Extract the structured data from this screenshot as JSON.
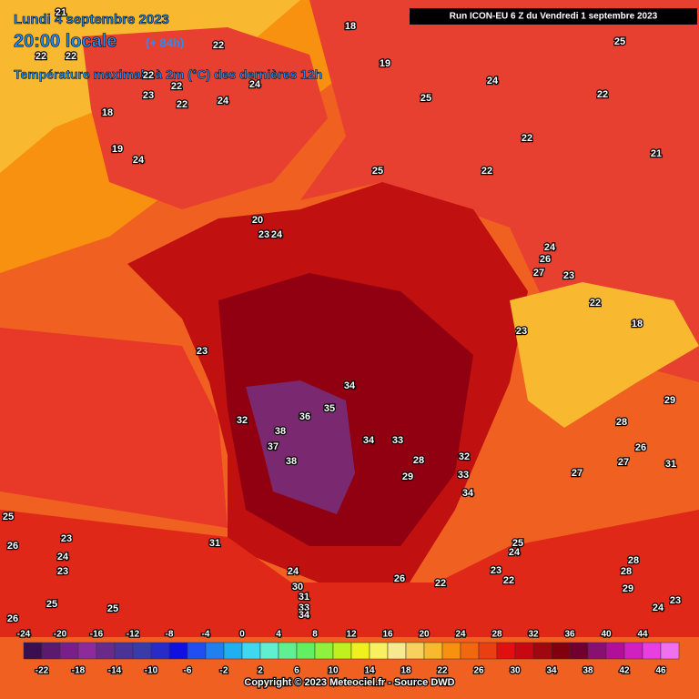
{
  "header": {
    "date": "Lundi 4 septembre 2023",
    "time": "20:00 locale",
    "lead": "(+ 84h)",
    "variable": "Température maximale à 2m (°C) des dernières 12h",
    "run": "Run ICON-EU 6 Z du Vendredi 1 septembre 2023"
  },
  "map_labels": [
    21,
    22,
    22,
    22,
    22,
    22,
    18,
    19,
    25,
    24,
    22,
    25,
    23,
    22,
    24,
    24,
    18,
    22,
    19,
    24,
    25,
    22,
    21,
    20,
    23,
    24,
    24,
    26,
    27,
    23,
    22,
    23,
    18,
    23,
    34,
    35,
    36,
    32,
    38,
    34,
    33,
    37,
    38,
    28,
    32,
    29,
    33,
    34,
    27,
    31,
    29,
    28,
    26,
    27,
    25,
    26,
    31,
    24,
    23,
    23,
    25,
    24,
    23,
    22,
    22,
    26,
    24,
    30,
    31,
    33,
    34,
    25,
    25,
    26,
    24,
    23,
    29,
    28,
    28
  ],
  "colorbar": {
    "ticks_top": [
      -24,
      -20,
      -16,
      -12,
      -8,
      -4,
      0,
      4,
      8,
      12,
      16,
      20,
      24,
      28,
      32,
      36,
      40,
      44
    ],
    "ticks_bottom": [
      -22,
      -18,
      -14,
      -10,
      -6,
      -2,
      2,
      6,
      10,
      14,
      18,
      22,
      26,
      30,
      34,
      38,
      42,
      46
    ],
    "colors": [
      "#3b0f4f",
      "#5c1a6e",
      "#7a1f8a",
      "#8e2b9a",
      "#6a2a8a",
      "#4b3296",
      "#3a3aa8",
      "#2a2ac8",
      "#1010e0",
      "#1f4ff0",
      "#2080f0",
      "#20b0f0",
      "#40d8f0",
      "#60f0d0",
      "#60f090",
      "#60f060",
      "#90f040",
      "#c0f020",
      "#f0f020",
      "#f8f060",
      "#f8e890",
      "#f8d060",
      "#f8b830",
      "#f89010",
      "#f06810",
      "#e84010",
      "#e01010",
      "#c80810",
      "#a00810",
      "#800010",
      "#700030",
      "#881070",
      "#b01098",
      "#d020c0",
      "#e840e0",
      "#f070f0"
    ]
  },
  "footer": "Copyright © 2023 Meteociel.fr - Source DWD"
}
